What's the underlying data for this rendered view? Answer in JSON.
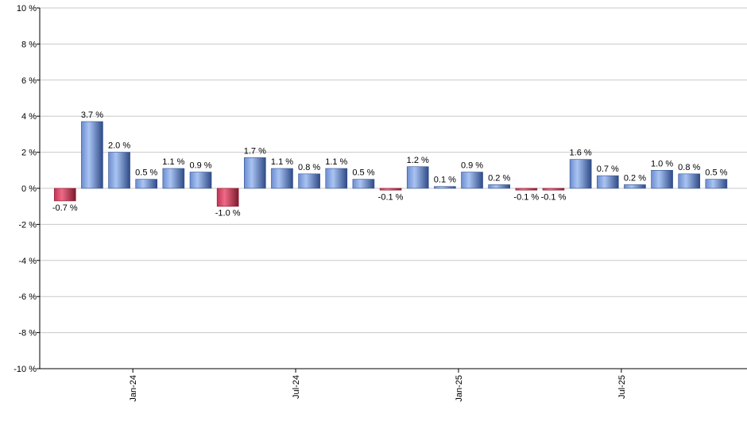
{
  "chart_data": {
    "type": "bar",
    "title": "",
    "xlabel": "",
    "ylabel": "",
    "ylim": [
      -10,
      10
    ],
    "y_ticks": [
      10,
      8,
      6,
      4,
      2,
      0,
      -2,
      -4,
      -6,
      -8,
      -10
    ],
    "y_tick_suffix": " %",
    "x_tick_labels": [
      {
        "label": "Jan-24",
        "after_index": 2
      },
      {
        "label": "Jul-24",
        "after_index": 8
      },
      {
        "label": "Jan-25",
        "after_index": 14
      },
      {
        "label": "Jul-25",
        "after_index": 20
      }
    ],
    "grid": true,
    "legend": "none",
    "values": [
      -0.7,
      3.7,
      2.0,
      0.5,
      1.1,
      0.9,
      -1.0,
      1.7,
      1.1,
      0.8,
      1.1,
      0.5,
      -0.1,
      1.2,
      0.1,
      0.9,
      0.2,
      -0.1,
      -0.1,
      1.6,
      0.7,
      0.2,
      1.0,
      0.8,
      0.5
    ],
    "data_labels": [
      "-0.7 %",
      "3.7 %",
      "2.0 %",
      "0.5 %",
      "1.1 %",
      "0.9 %",
      "-1.0 %",
      "1.7 %",
      "1.1 %",
      "0.8 %",
      "1.1 %",
      "0.5 %",
      "-0.1 %",
      "1.2 %",
      "0.1 %",
      "0.9 %",
      "0.2 %",
      "-0.1 %",
      "-0.1 %",
      "1.6 %",
      "0.7 %",
      "0.2 %",
      "1.0 %",
      "0.8 %",
      "0.5 %"
    ],
    "colors": {
      "positive": "#7f9fdf",
      "positive_dark": "#2f4f8f",
      "negative": "#d04060",
      "negative_dark": "#8f1f35",
      "grid": "#c8c8c8",
      "axis": "#000000"
    }
  }
}
